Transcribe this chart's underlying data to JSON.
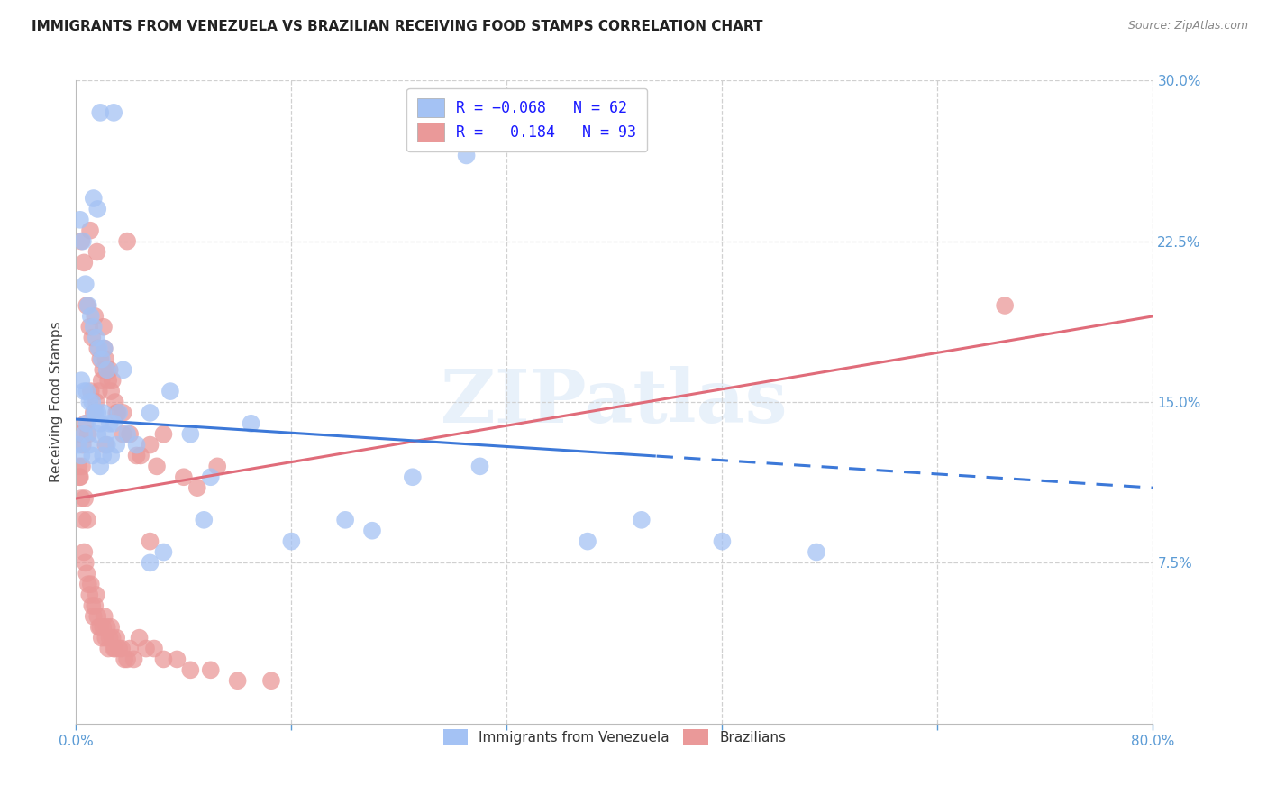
{
  "title": "IMMIGRANTS FROM VENEZUELA VS BRAZILIAN RECEIVING FOOD STAMPS CORRELATION CHART",
  "source": "Source: ZipAtlas.com",
  "ylabel": "Receiving Food Stamps",
  "xlim": [
    0.0,
    80.0
  ],
  "ylim": [
    0.0,
    30.0
  ],
  "watermark": "ZIPatlas",
  "blue_color": "#a4c2f4",
  "pink_color": "#ea9999",
  "blue_line_color": "#3c78d8",
  "pink_line_color": "#e06c7a",
  "venezuela_scatter_x": [
    1.8,
    2.8,
    1.3,
    1.6,
    0.3,
    0.5,
    0.7,
    0.9,
    1.1,
    1.3,
    1.5,
    1.7,
    1.9,
    2.1,
    2.3,
    0.4,
    0.6,
    0.8,
    1.0,
    1.2,
    1.4,
    1.6,
    1.8,
    2.0,
    2.2,
    2.5,
    2.8,
    3.2,
    3.8,
    4.5,
    5.5,
    7.0,
    8.5,
    10.0,
    13.0,
    16.0,
    20.0,
    25.0,
    30.0,
    38.0,
    42.0,
    48.0,
    0.2,
    0.4,
    0.6,
    0.8,
    1.0,
    1.2,
    1.4,
    1.6,
    1.8,
    2.0,
    2.3,
    2.6,
    3.0,
    5.5,
    6.5,
    9.5,
    22.0,
    55.0,
    29.0,
    3.5
  ],
  "venezuela_scatter_y": [
    28.5,
    28.5,
    24.5,
    24.0,
    23.5,
    22.5,
    20.5,
    19.5,
    19.0,
    18.5,
    18.0,
    17.5,
    17.0,
    17.5,
    16.5,
    16.0,
    15.5,
    15.5,
    15.0,
    15.0,
    14.5,
    14.5,
    14.0,
    14.5,
    13.5,
    14.0,
    14.0,
    14.5,
    13.5,
    13.0,
    14.5,
    15.5,
    13.5,
    11.5,
    14.0,
    8.5,
    9.5,
    11.5,
    12.0,
    8.5,
    9.5,
    8.5,
    13.0,
    12.5,
    13.5,
    14.0,
    13.0,
    12.5,
    14.5,
    13.5,
    12.0,
    12.5,
    13.0,
    12.5,
    13.0,
    7.5,
    8.0,
    9.5,
    9.0,
    8.0,
    26.5,
    16.5
  ],
  "brazil_scatter_x": [
    0.2,
    0.3,
    0.4,
    0.5,
    0.6,
    0.7,
    0.8,
    0.9,
    1.0,
    1.1,
    1.2,
    1.3,
    1.4,
    1.5,
    1.6,
    1.7,
    1.8,
    1.9,
    2.0,
    2.1,
    2.2,
    2.3,
    2.4,
    2.5,
    2.6,
    2.7,
    2.8,
    2.9,
    3.0,
    3.2,
    3.4,
    3.6,
    3.8,
    4.0,
    4.3,
    4.7,
    5.2,
    5.8,
    6.5,
    7.5,
    8.5,
    10.0,
    12.0,
    14.5,
    0.3,
    0.5,
    0.7,
    0.9,
    1.1,
    1.3,
    1.5,
    1.7,
    1.9,
    2.1,
    2.3,
    2.5,
    2.7,
    2.9,
    3.1,
    3.5,
    4.0,
    4.8,
    5.5,
    6.5,
    8.0,
    10.5,
    0.4,
    0.6,
    0.8,
    1.0,
    1.2,
    1.4,
    1.6,
    1.8,
    2.0,
    2.2,
    2.4,
    2.6,
    3.0,
    3.5,
    4.5,
    6.0,
    9.0,
    1.05,
    1.55,
    2.05,
    0.25,
    0.45,
    0.65,
    0.85,
    5.5,
    69.0,
    3.8,
    2.2
  ],
  "brazil_scatter_y": [
    12.0,
    11.5,
    10.5,
    9.5,
    8.0,
    7.5,
    7.0,
    6.5,
    6.0,
    6.5,
    5.5,
    5.0,
    5.5,
    6.0,
    5.0,
    4.5,
    4.5,
    4.0,
    4.5,
    5.0,
    4.0,
    4.5,
    3.5,
    4.0,
    4.5,
    4.0,
    3.5,
    3.5,
    4.0,
    3.5,
    3.5,
    3.0,
    3.0,
    3.5,
    3.0,
    4.0,
    3.5,
    3.5,
    3.0,
    3.0,
    2.5,
    2.5,
    2.0,
    2.0,
    13.5,
    13.0,
    14.0,
    13.5,
    15.5,
    14.5,
    15.0,
    15.5,
    16.0,
    17.5,
    16.5,
    16.5,
    16.0,
    15.0,
    14.5,
    14.5,
    13.5,
    12.5,
    13.0,
    13.5,
    11.5,
    12.0,
    22.5,
    21.5,
    19.5,
    18.5,
    18.0,
    19.0,
    17.5,
    17.0,
    16.5,
    17.0,
    16.0,
    15.5,
    14.5,
    13.5,
    12.5,
    12.0,
    11.0,
    23.0,
    22.0,
    18.5,
    11.5,
    12.0,
    10.5,
    9.5,
    8.5,
    19.5,
    22.5,
    13.0
  ],
  "ven_line_start_x": 0.0,
  "ven_line_start_y": 14.2,
  "ven_line_end_x": 80.0,
  "ven_line_end_y": 11.0,
  "bra_line_start_x": 0.0,
  "bra_line_start_y": 10.5,
  "bra_line_end_x": 80.0,
  "bra_line_end_y": 19.0,
  "ven_solid_end_x": 43.0,
  "ven_dashed_start_x": 43.0
}
